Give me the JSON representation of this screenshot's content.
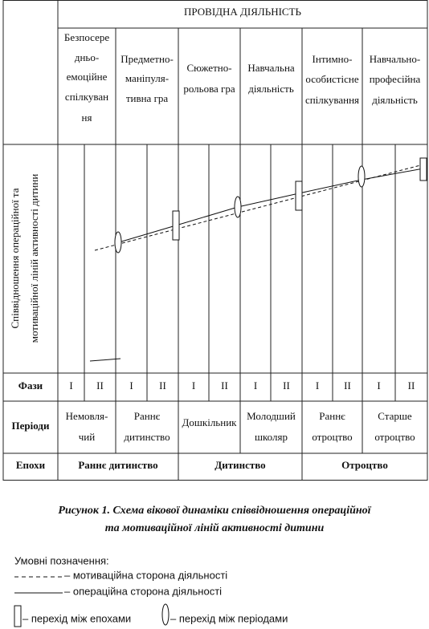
{
  "header": {
    "title": "ПРОВІДНА ДІЯЛЬНІСТЬ"
  },
  "activities": [
    {
      "lines": [
        "Безпосере",
        "дньо-",
        "емоційне",
        "спілкуван",
        "ня"
      ]
    },
    {
      "lines": [
        "Предметно-",
        "маніпуля-",
        "тивна гра"
      ]
    },
    {
      "lines": [
        "Сюжетно-",
        "рольова гра"
      ]
    },
    {
      "lines": [
        "Навчальна",
        "діяльність"
      ]
    },
    {
      "lines": [
        "Інтимно-",
        "особистісне",
        "спілкування"
      ]
    },
    {
      "lines": [
        "Навчально-",
        "професійна",
        "діяльність"
      ]
    }
  ],
  "axis_label": {
    "lines": [
      "Співвідношення операційної та",
      "мотиваційної ліній активності дитини"
    ]
  },
  "phases": {
    "label": "Фази",
    "values": [
      "I",
      "II",
      "I",
      "II",
      "I",
      "II",
      "I",
      "II",
      "I",
      "II",
      "I",
      "II"
    ]
  },
  "periods": {
    "label": "Періоди",
    "items": [
      {
        "lines": [
          "Немовля-",
          "чий"
        ]
      },
      {
        "lines": [
          "Раннє",
          "дитинство"
        ]
      },
      {
        "lines": [
          "Дошкільник"
        ]
      },
      {
        "lines": [
          "Молодший",
          "школяр"
        ]
      },
      {
        "lines": [
          "Раннє",
          "отроцтво"
        ]
      },
      {
        "lines": [
          "Старше",
          "отроцтво"
        ]
      }
    ]
  },
  "epochs": {
    "label": "Епохи",
    "items": [
      "Раннє дитинство",
      "Дитинство",
      "Отроцтво"
    ]
  },
  "caption": {
    "lines": [
      "Рисунок 1. Схема вікової динаміки співвідношення операційної",
      "та мотиваційної ліній активності дитини"
    ]
  },
  "legend": {
    "title": "Умовні позначення:",
    "items": [
      "– мотиваційна сторона діяльності",
      "– операційна сторона діяльності",
      "– перехід між епохами",
      "– перехід між періодами"
    ]
  }
}
